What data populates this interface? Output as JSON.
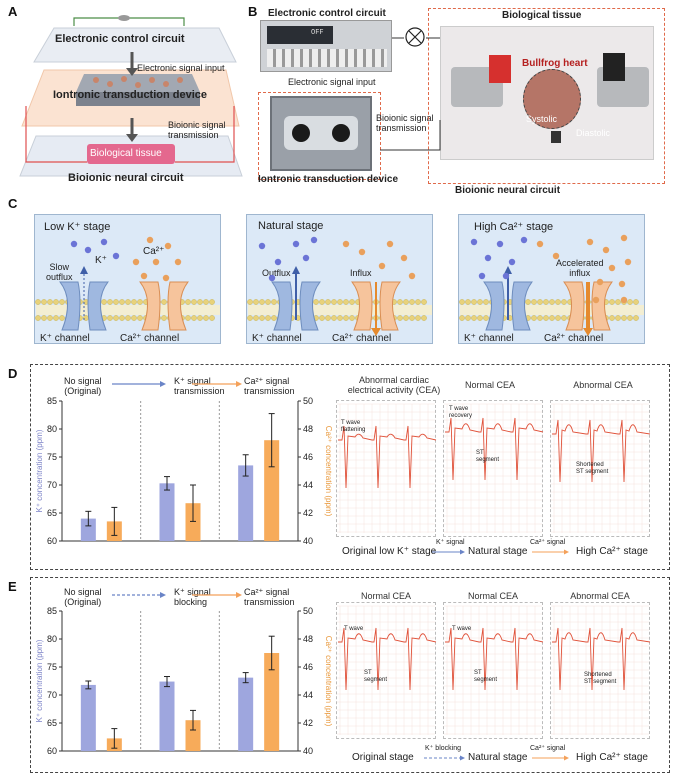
{
  "panels": {
    "A": "A",
    "B": "B",
    "C": "C",
    "D": "D",
    "E": "E"
  },
  "panelA": {
    "top": "Electronic control circuit",
    "signal_input": "Electronic signal input",
    "device": "Iontronic transduction device",
    "bioionic_signal": "Bioionic signal\ntransmission",
    "tissue": "Biological tissue",
    "bottom": "Bioionic neural circuit"
  },
  "panelB": {
    "ecc": "Electronic control circuit",
    "meter_reading": "OFF",
    "bio_tissue": "Biological tissue",
    "heart": "Bullfrog heart",
    "systolic": "Systolic",
    "diastolic": "Diastolic",
    "esi": "Electronic signal input",
    "bst": "Bioionic signal\ntransmission",
    "itd": "Iontronic transduction device",
    "bnc": "Bioionic neural circuit"
  },
  "panelC": {
    "low": {
      "title": "Low K⁺ stage",
      "slow": "Slow\noutflux",
      "k": "K⁺",
      "ca": "Ca²⁺",
      "kch": "K⁺ channel",
      "cach": "Ca²⁺ channel"
    },
    "natural": {
      "title": "Natural stage",
      "outflux": "Outflux",
      "influx": "Influx",
      "kch": "K⁺ channel",
      "cach": "Ca²⁺ channel"
    },
    "high": {
      "title": "High Ca²⁺ stage",
      "acc": "Accelerated\ninflux",
      "kch": "K⁺ channel",
      "cach": "Ca²⁺ channel"
    }
  },
  "colors": {
    "k_bar": "#9ea6de",
    "ca_bar": "#f7ab5a",
    "k_axis": "#7f86c9",
    "ca_axis": "#e99a3f",
    "ecg": "#e0523a",
    "k_dot": "#6b74d6",
    "ca_dot": "#e9a05c"
  },
  "panelD": {
    "legend": {
      "no_signal": "No signal\n(Original)",
      "k_sig": "K⁺ signal\ntransmission",
      "ca_sig": "Ca²⁺ signal\ntransmission"
    },
    "ecg": {
      "t1": "Abnormal cardiac\nelectrical activity (CEA)",
      "t2": "Normal CEA",
      "t3": "Abnormal CEA",
      "ann1": "T wave\nflattening",
      "ann2a": "T wave\nrecovery",
      "ann2b": "ST\nsegment",
      "ann3": "Shortened\nST segment",
      "bottom1": "Original low K⁺ stage",
      "arrow1": "K⁺ signal",
      "bottom2": "Natural stage",
      "arrow2": "Ca²⁺ signal",
      "bottom3": "High Ca²⁺ stage"
    }
  },
  "panelE": {
    "legend": {
      "no_signal": "No signal\n(Original)",
      "k_block": "K⁺ signal\nblocking",
      "ca_sig": "Ca²⁺ signal\ntransmission"
    },
    "ecg": {
      "t1": "Normal CEA",
      "t2": "Normal CEA",
      "t3": "Abnormal CEA",
      "ann1a": "T wave",
      "ann1b": "ST\nsegment",
      "ann2a": "T wave",
      "ann2b": "ST\nsegment",
      "ann3": "Shortened\nST segment",
      "bottom1": "Original stage",
      "arrow1": "K⁺ blocking",
      "bottom2": "Natural stage",
      "arrow2": "Ca²⁺ signal",
      "bottom3": "High Ca²⁺ stage"
    }
  },
  "chart_data": [
    {
      "type": "bar",
      "panel": "D",
      "ylabel": "K⁺ concentration (ppm)",
      "y2label": "Ca²⁺ concentration (ppm)",
      "ylim": [
        60,
        85
      ],
      "y2lim": [
        40,
        50
      ],
      "yticks": [
        60,
        65,
        70,
        75,
        80,
        85
      ],
      "y2ticks": [
        40,
        42,
        44,
        46,
        48,
        50
      ],
      "groups": [
        "No signal (Original)",
        "K⁺ signal transmission",
        "Ca²⁺ signal transmission"
      ],
      "series": [
        {
          "name": "K⁺",
          "axis": "left",
          "values": [
            64.0,
            70.3,
            73.5
          ],
          "errors": [
            1.3,
            1.2,
            1.9
          ]
        },
        {
          "name": "Ca²⁺",
          "axis": "right",
          "values": [
            41.4,
            42.7,
            47.2
          ],
          "errors": [
            1.0,
            1.3,
            1.9
          ]
        }
      ]
    },
    {
      "type": "bar",
      "panel": "E",
      "ylabel": "K⁺ concentration (ppm)",
      "y2label": "Ca²⁺ concentration (ppm)",
      "ylim": [
        60,
        85
      ],
      "y2lim": [
        40,
        50
      ],
      "yticks": [
        60,
        65,
        70,
        75,
        80,
        85
      ],
      "y2ticks": [
        40,
        42,
        44,
        46,
        48,
        50
      ],
      "groups": [
        "No signal (Original)",
        "K⁺ signal blocking",
        "Ca²⁺ signal transmission"
      ],
      "series": [
        {
          "name": "K⁺",
          "axis": "left",
          "values": [
            71.8,
            72.4,
            73.1
          ],
          "errors": [
            0.7,
            0.9,
            0.9
          ]
        },
        {
          "name": "Ca²⁺",
          "axis": "right",
          "values": [
            40.9,
            42.2,
            47.0
          ],
          "errors": [
            0.7,
            0.7,
            1.2
          ]
        }
      ]
    }
  ]
}
